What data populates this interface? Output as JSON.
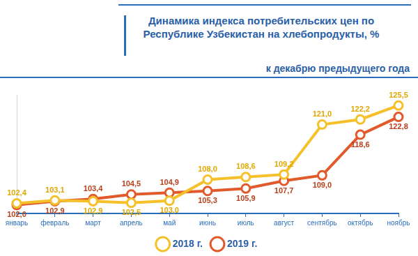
{
  "chart_data": {
    "type": "line",
    "title": "Динамика индекса потребительских цен по Республике Узбекистан на хлебопродукты, %",
    "subtitle": "к декабрю предыдущего года",
    "categories": [
      "январь",
      "февраль",
      "март",
      "апрель",
      "май",
      "июнь",
      "июль",
      "август",
      "сентябрь",
      "октябрь",
      "ноябрь"
    ],
    "series": [
      {
        "name": "2018 г.",
        "color": "#f5c02a",
        "marker": "circle",
        "values": [
          102.4,
          103.1,
          102.9,
          102.5,
          103.0,
          108.0,
          108.6,
          109.2,
          121.0,
          122.2,
          125.5
        ],
        "value_labels": [
          "102,4",
          "103,1",
          "102,9",
          "102,5",
          "103,0",
          "108,0",
          "108,6",
          "109,2",
          "121,0",
          "122,2",
          "125,5"
        ]
      },
      {
        "name": "2019 г.",
        "color": "#e05a2b",
        "marker": "circle",
        "values": [
          102.0,
          102.9,
          103.4,
          104.5,
          104.9,
          105.3,
          105.9,
          107.7,
          109.0,
          118.6,
          122.8
        ],
        "value_labels": [
          "102,0",
          "102,9",
          "103,4",
          "104,5",
          "104,9",
          "105,3",
          "105,9",
          "107,7",
          "109,0",
          "118,6",
          "122,8"
        ]
      }
    ],
    "ylim": [
      100,
      128
    ],
    "grid": false,
    "legend": "bottom",
    "data_labels": true,
    "tick_labels": "x"
  }
}
